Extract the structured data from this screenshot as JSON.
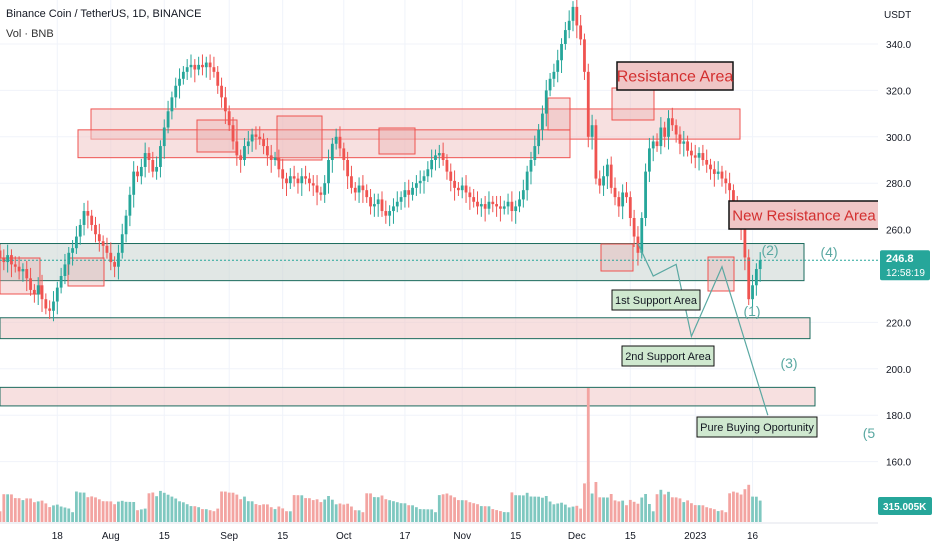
{
  "header": {
    "symbol_line": "Binance Coin / TetherUS, 1D, BINANCE",
    "volume_line": "Vol · BNB"
  },
  "chart_data": {
    "type": "candlestick",
    "price_axis": {
      "unit_label": "USDT",
      "ticks": [
        340,
        320,
        300,
        280,
        260,
        220,
        200,
        180,
        160
      ],
      "tick_labels": [
        "340.0",
        "320.0",
        "300.0",
        "280.0",
        "260.0",
        "220.0",
        "200.0",
        "180.0",
        "160.0"
      ],
      "range": [
        143,
        362
      ]
    },
    "time_axis": {
      "tick_labels": [
        "18",
        "Aug",
        "15",
        "Sep",
        "15",
        "Oct",
        "17",
        "Nov",
        "15",
        "Dec",
        "15",
        "2023",
        "16"
      ],
      "range": [
        "2022-07-03",
        "2023-01-22"
      ]
    },
    "last_price": {
      "value": 246.8,
      "label": "246.8",
      "countdown": "12:58:19"
    },
    "volume_last": {
      "label": "315.005K"
    },
    "ohlc_closes": [
      248,
      246,
      249,
      245,
      244,
      242,
      243,
      239,
      234,
      232,
      236,
      230,
      226,
      225,
      229,
      235,
      240,
      245,
      250,
      252,
      257,
      262,
      268,
      266,
      262,
      258,
      255,
      253,
      250,
      246,
      244,
      250,
      258,
      266,
      275,
      285,
      283,
      287,
      293,
      290,
      285,
      287,
      296,
      304,
      311,
      317,
      322,
      325,
      328,
      330,
      331,
      329,
      331,
      330,
      332,
      330,
      328,
      322,
      317,
      311,
      305,
      298,
      292,
      290,
      296,
      298,
      301,
      300,
      299,
      296,
      292,
      290,
      291,
      286,
      282,
      280,
      283,
      282,
      280,
      283,
      282,
      280,
      279,
      276,
      275,
      280,
      290,
      297,
      300,
      295,
      290,
      283,
      278,
      276,
      279,
      277,
      274,
      270,
      271,
      273,
      268,
      266,
      268,
      270,
      272,
      274,
      277,
      275,
      278,
      280,
      281,
      283,
      286,
      290,
      292,
      293,
      290,
      285,
      281,
      278,
      277,
      279,
      276,
      274,
      272,
      270,
      271,
      269,
      272,
      271,
      270,
      269,
      270,
      272,
      268,
      270,
      273,
      277,
      285,
      290,
      296,
      303,
      310,
      320,
      325,
      328,
      333,
      340,
      346,
      350,
      356,
      348,
      342,
      328,
      300,
      305,
      282,
      279,
      283,
      288,
      278,
      274,
      270,
      276,
      274,
      265,
      257,
      250,
      265,
      285,
      295,
      298,
      296,
      304,
      300,
      308,
      305,
      301,
      297,
      298,
      294,
      292,
      291,
      293,
      290,
      288,
      286,
      284,
      285,
      282,
      280,
      277,
      271,
      265,
      260,
      248,
      230,
      236,
      243,
      246.8
    ],
    "zones": [
      {
        "name": "resistance-upper",
        "from": 299,
        "to": 312
      },
      {
        "name": "resistance-lower",
        "from": 291,
        "to": 303
      },
      {
        "name": "1st-support",
        "from": 238,
        "to": 254
      },
      {
        "name": "2nd-support",
        "from": 213,
        "to": 222
      },
      {
        "name": "pure-buying",
        "from": 184,
        "to": 192
      }
    ],
    "annotations": [
      {
        "text": "Resistance Area"
      },
      {
        "text": "New Resistance Area"
      },
      {
        "text": "1st Support Area"
      },
      {
        "text": "2nd Support Area"
      },
      {
        "text": "Pure Buying Oportunity"
      }
    ],
    "wave_labels": [
      "(1)",
      "(2)",
      "(3)",
      "(4)",
      "(5"
    ],
    "wave_path": [
      {
        "date": "2022-12-17",
        "price": 254
      },
      {
        "date": "2022-12-21",
        "price": 240
      },
      {
        "date": "2022-12-27",
        "price": 245
      },
      {
        "date": "2022-12-31",
        "price": 214
      },
      {
        "date": "2023-01-08",
        "price": 244
      },
      {
        "date": "2023-01-20",
        "price": 180
      }
    ],
    "colors": {
      "up": "#26a69a",
      "down": "#ef5350",
      "zone_fill": "#f0c6c6",
      "zone_stroke": "#ef5350",
      "support_stroke": "#1b6b5e",
      "wave": "#5aa8a2"
    }
  }
}
